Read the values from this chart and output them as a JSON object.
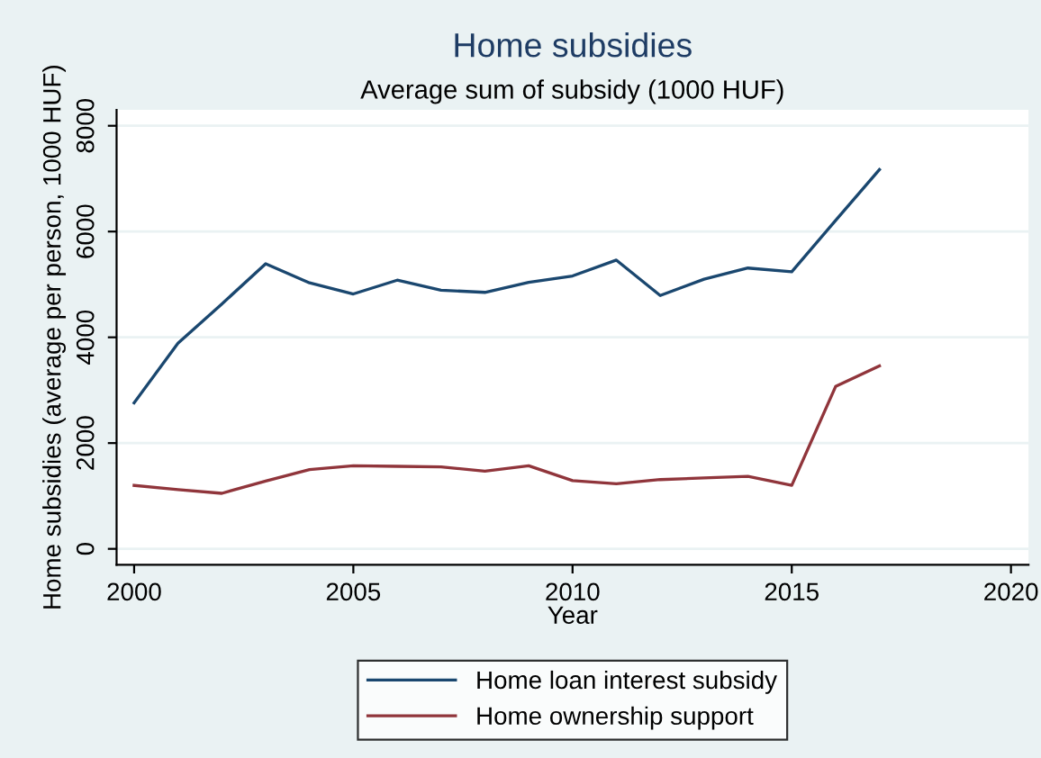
{
  "chart_data": {
    "type": "line",
    "title": "Home subsidies",
    "subtitle": "Average sum of subsidy (1000 HUF)",
    "xlabel": "Year",
    "ylabel": "Home subsidies (average per person, 1000 HUF)",
    "x": [
      2000,
      2001,
      2002,
      2003,
      2004,
      2005,
      2006,
      2007,
      2008,
      2009,
      2010,
      2011,
      2012,
      2013,
      2014,
      2015,
      2016,
      2017
    ],
    "series": [
      {
        "name": "Home loan interest subsidy",
        "color": "#1a476f",
        "values": [
          2760,
          3890,
          4630,
          5390,
          5030,
          4820,
          5080,
          4890,
          4850,
          5040,
          5160,
          5460,
          4790,
          5100,
          5310,
          5240,
          6210,
          7170
        ]
      },
      {
        "name": "Home ownership support",
        "color": "#90353b",
        "values": [
          1200,
          1120,
          1050,
          1280,
          1500,
          1570,
          1560,
          1550,
          1470,
          1570,
          1290,
          1230,
          1310,
          1340,
          1370,
          1200,
          3070,
          3460
        ]
      }
    ],
    "xlim": [
      1999.6,
      2020.4
    ],
    "ylim": [
      -300,
      8300
    ],
    "xticks": [
      2000,
      2005,
      2010,
      2015,
      2020
    ],
    "yticks": [
      0,
      2000,
      4000,
      6000,
      8000
    ],
    "grid": "y",
    "legend": "bottom",
    "marker": "none",
    "line_style": "solid"
  }
}
